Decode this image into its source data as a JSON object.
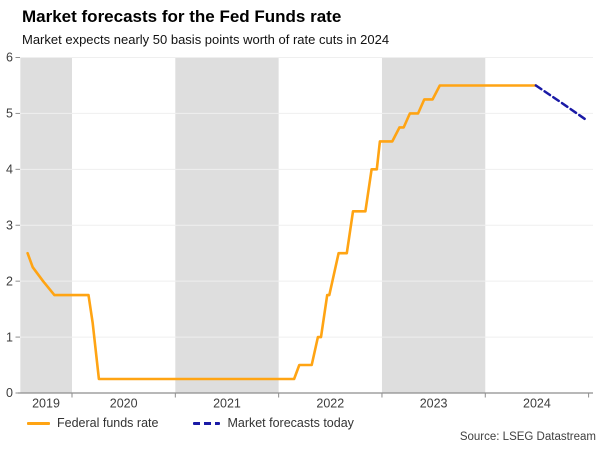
{
  "header": {
    "title": "Market forecasts for the Fed Funds rate",
    "subtitle": "Market expects nearly 50 basis points worth of rate cuts in 2024"
  },
  "chart_data": {
    "type": "line",
    "title": "Market forecasts for the Fed Funds rate",
    "subtitle": "Market expects nearly 50 basis points worth of rate cuts in 2024",
    "xlabel": "",
    "ylabel": "",
    "ylim": [
      0,
      6
    ],
    "y_ticks": [
      0,
      1,
      2,
      3,
      4,
      5,
      6
    ],
    "x_domain": [
      2019.5,
      2025.04
    ],
    "x_year_labels": [
      "2019",
      "2020",
      "2021",
      "2022",
      "2023",
      "2024"
    ],
    "x_boundary_ticks": [
      2020,
      2021,
      2022,
      2023,
      2024,
      2025
    ],
    "shaded_year_bands": [
      [
        2019.5,
        2020
      ],
      [
        2021,
        2022
      ],
      [
        2023,
        2024
      ]
    ],
    "grid": true,
    "legend_position": "bottom-left",
    "series": [
      {
        "name": "Federal funds rate",
        "style": "solid",
        "color": "#FFA413",
        "points": [
          [
            2019.57,
            2.5
          ],
          [
            2019.62,
            2.25
          ],
          [
            2019.72,
            2.0
          ],
          [
            2019.83,
            1.75
          ],
          [
            2020.16,
            1.75
          ],
          [
            2020.2,
            1.25
          ],
          [
            2020.26,
            0.25
          ],
          [
            2022.15,
            0.25
          ],
          [
            2022.2,
            0.5
          ],
          [
            2022.32,
            0.5
          ],
          [
            2022.38,
            1.0
          ],
          [
            2022.41,
            1.0
          ],
          [
            2022.47,
            1.75
          ],
          [
            2022.49,
            1.75
          ],
          [
            2022.58,
            2.5
          ],
          [
            2022.66,
            2.5
          ],
          [
            2022.72,
            3.25
          ],
          [
            2022.84,
            3.25
          ],
          [
            2022.9,
            4.0
          ],
          [
            2022.95,
            4.0
          ],
          [
            2022.98,
            4.5
          ],
          [
            2023.1,
            4.5
          ],
          [
            2023.17,
            4.75
          ],
          [
            2023.21,
            4.75
          ],
          [
            2023.27,
            5.0
          ],
          [
            2023.35,
            5.0
          ],
          [
            2023.41,
            5.25
          ],
          [
            2023.49,
            5.25
          ],
          [
            2023.56,
            5.5
          ],
          [
            2024.49,
            5.5
          ]
        ]
      },
      {
        "name": "Market forecasts today",
        "style": "dashed",
        "color": "#1A1AA6",
        "points": [
          [
            2024.49,
            5.5
          ],
          [
            2024.73,
            5.2
          ],
          [
            2024.98,
            4.88
          ]
        ]
      }
    ]
  },
  "legend": {
    "items": [
      {
        "label": "Federal funds rate",
        "color": "#FFA413",
        "style": "solid"
      },
      {
        "label": "Market forecasts today",
        "color": "#1A1AA6",
        "style": "dashed"
      }
    ]
  },
  "source": "Source: LSEG Datastream",
  "colors": {
    "band": "#DEDEDE",
    "gridline": "#EFEFEF",
    "axis": "#8E8E8E",
    "tick_label": "#3D3D3D",
    "orange": "#FFA413",
    "navy": "#1A1AA6"
  }
}
